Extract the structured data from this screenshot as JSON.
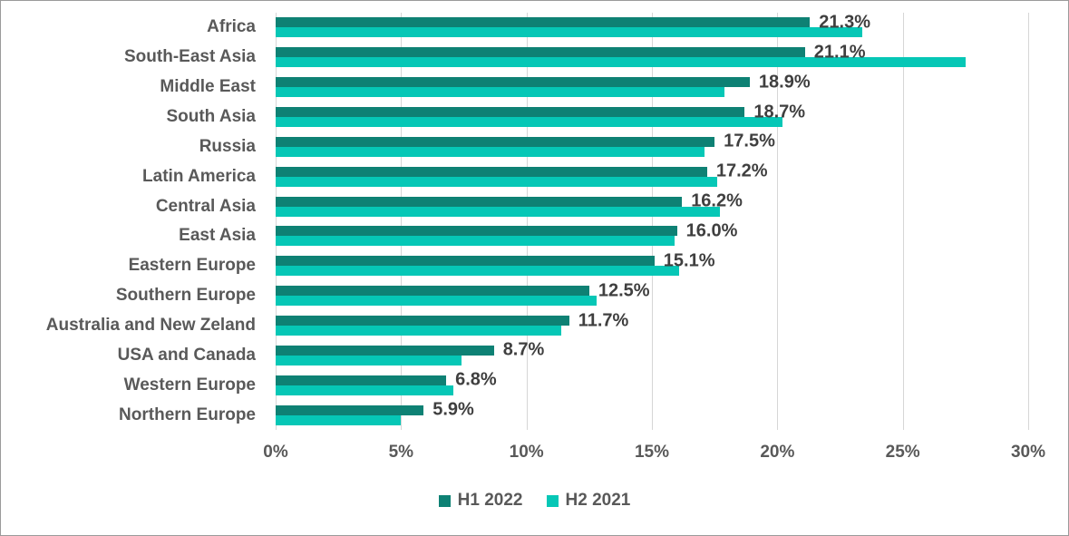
{
  "chart_data": {
    "type": "bar",
    "orientation": "horizontal",
    "title": "",
    "categories": [
      "Africa",
      "South-East Asia",
      "Middle East",
      "South Asia",
      "Russia",
      "Latin America",
      "Central Asia",
      "East Asia",
      "Eastern Europe",
      "Southern Europe",
      "Australia and New Zeland",
      "USA and Canada",
      "Western Europe",
      "Northern Europe"
    ],
    "series": [
      {
        "name": "H1 2022",
        "color": "#0e8174",
        "values": [
          21.3,
          21.1,
          18.9,
          18.7,
          17.5,
          17.2,
          16.2,
          16.0,
          15.1,
          12.5,
          11.7,
          8.7,
          6.8,
          5.9
        ],
        "data_labels": [
          "21.3%",
          "21.1%",
          "18.9%",
          "18.7%",
          "17.5%",
          "17.2%",
          "16.2%",
          "16.0%",
          "15.1%",
          "12.5%",
          "11.7%",
          "8.7%",
          "6.8%",
          "5.9%"
        ]
      },
      {
        "name": "H2 2021",
        "color": "#06c7b6",
        "values": [
          23.4,
          27.5,
          17.9,
          20.2,
          17.1,
          17.6,
          17.7,
          15.9,
          16.1,
          12.8,
          11.4,
          7.4,
          7.1,
          5.0
        ],
        "data_labels": []
      }
    ],
    "xlim": [
      0,
      30
    ],
    "x_ticks": [
      "0%",
      "5%",
      "10%",
      "15%",
      "20%",
      "25%",
      "30%"
    ],
    "grid": "vertical-only",
    "gridline_color": "#d6d6d6",
    "legend_position": "bottom",
    "data_labels_shown_for": "H1 2022",
    "category_label_color": "#595959",
    "data_label_color": "#3f3f3f"
  }
}
